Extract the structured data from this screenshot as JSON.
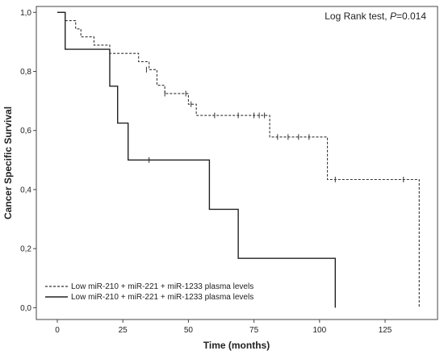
{
  "chart_data": {
    "type": "line",
    "style": "kaplan-meier step",
    "xlabel": "Time (months)",
    "ylabel": "Cancer Specific Survival",
    "annotation": {
      "prefix": "Log Rank test, ",
      "italic": "P",
      "suffix": "=0.014",
      "placement": "top-right"
    },
    "xlim": [
      -8,
      145
    ],
    "ylim": [
      -0.04,
      1.02
    ],
    "x_ticks": [
      0,
      25,
      50,
      75,
      100,
      125
    ],
    "x_tick_labels": [
      "0",
      "25",
      "50",
      "75",
      "100",
      "125"
    ],
    "y_ticks": [
      0.0,
      0.2,
      0.4,
      0.6,
      0.8,
      1.0
    ],
    "y_tick_labels": [
      "0,0",
      "0,2",
      "0,4",
      "0,6",
      "0,8",
      "1,0"
    ],
    "grid": false,
    "legend": {
      "placement": "bottom-left"
    },
    "series": [
      {
        "name": "Low miR-210 + miR-221 + miR-1233 plasma levels",
        "line_style": "dashed",
        "color": "#333333",
        "steps": [
          [
            0,
            1.0
          ],
          [
            3,
            0.972
          ],
          [
            7,
            0.944
          ],
          [
            9,
            0.917
          ],
          [
            14,
            0.889
          ],
          [
            20,
            0.861
          ],
          [
            31,
            0.833
          ],
          [
            35,
            0.806
          ],
          [
            38,
            0.753
          ],
          [
            41,
            0.725
          ],
          [
            50,
            0.689
          ],
          [
            53,
            0.651
          ],
          [
            78,
            0.651
          ],
          [
            81,
            0.578
          ],
          [
            101,
            0.578
          ],
          [
            103,
            0.434
          ],
          [
            138,
            0.434
          ],
          [
            138,
            0.0
          ]
        ],
        "censored": [
          [
            34,
            0.806
          ],
          [
            41,
            0.725
          ],
          [
            49,
            0.725
          ],
          [
            51,
            0.689
          ],
          [
            60,
            0.651
          ],
          [
            69,
            0.651
          ],
          [
            75,
            0.651
          ],
          [
            77,
            0.651
          ],
          [
            79,
            0.651
          ],
          [
            84,
            0.578
          ],
          [
            88,
            0.578
          ],
          [
            92,
            0.578
          ],
          [
            96,
            0.578
          ],
          [
            106,
            0.434
          ],
          [
            132,
            0.434
          ]
        ]
      },
      {
        "name": "Low miR-210 + miR-221 + miR-1233 plasma levels",
        "line_style": "solid",
        "color": "#222222",
        "steps": [
          [
            0,
            1.0
          ],
          [
            3,
            0.875
          ],
          [
            20,
            0.75
          ],
          [
            23,
            0.625
          ],
          [
            27,
            0.5
          ],
          [
            58,
            0.333
          ],
          [
            69,
            0.167
          ],
          [
            106,
            0.167
          ],
          [
            106,
            0.0
          ]
        ],
        "censored": [
          [
            35,
            0.5
          ]
        ]
      }
    ]
  }
}
